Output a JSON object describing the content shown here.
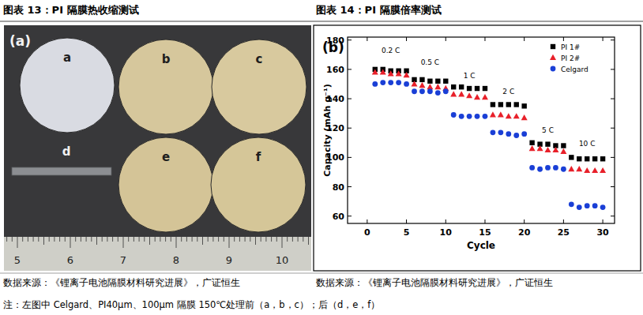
{
  "header": {
    "left_title": "图表 13：PI 隔膜热收缩测试",
    "right_title": "图表 14：PI 隔膜倍率测试"
  },
  "photo": {
    "panel_label": "(a)",
    "samples": [
      {
        "label": "a",
        "color": "#d9dbe2",
        "shape": "disc"
      },
      {
        "label": "b",
        "color": "#d6c79c",
        "shape": "disc"
      },
      {
        "label": "c",
        "color": "#d8c99e",
        "shape": "disc"
      },
      {
        "label": "d",
        "color": "#8c8e92",
        "shape": "strip"
      },
      {
        "label": "e",
        "color": "#d4c497",
        "shape": "disc"
      },
      {
        "label": "f",
        "color": "#d5c698",
        "shape": "disc"
      }
    ],
    "ruler_labels": [
      "5",
      "6",
      "7",
      "8",
      "9",
      "10"
    ]
  },
  "chart_data": {
    "type": "scatter",
    "panel_label": "(b)",
    "x_label": "Cycle",
    "y_label": "Capacity (mAh g⁻¹)",
    "x": [
      1,
      2,
      3,
      4,
      5,
      6,
      7,
      8,
      9,
      10,
      11,
      12,
      13,
      14,
      15,
      16,
      17,
      18,
      19,
      20,
      21,
      22,
      23,
      24,
      25,
      26,
      27,
      28,
      29,
      30
    ],
    "xlim": [
      -2.5,
      31.5
    ],
    "xticks": [
      0,
      5,
      10,
      15,
      20,
      25,
      30
    ],
    "ylim": [
      55,
      182
    ],
    "yticks": [
      60,
      80,
      100,
      120,
      140,
      160,
      180
    ],
    "grid": false,
    "legend": "upper right",
    "series": [
      {
        "name": "PI 1#",
        "color": "#000000",
        "marker": "square",
        "values": [
          160,
          160,
          159,
          159,
          159,
          153,
          153,
          152,
          152,
          152,
          148,
          148,
          147,
          147,
          147,
          136,
          136,
          136,
          136,
          135,
          110,
          109,
          109,
          108,
          108,
          100,
          99,
          99,
          99,
          99
        ]
      },
      {
        "name": "PI 2#",
        "color": "#e8202a",
        "marker": "triangle",
        "values": [
          158,
          158,
          157,
          157,
          156,
          150,
          149,
          148,
          148,
          147,
          143,
          143,
          142,
          141,
          141,
          129,
          129,
          128,
          128,
          127,
          106,
          106,
          105,
          105,
          104,
          92,
          92,
          91,
          91,
          91
        ]
      },
      {
        "name": "Celgard",
        "color": "#1a3fd6",
        "marker": "circle",
        "values": [
          150,
          151,
          151,
          151,
          150,
          145,
          145,
          145,
          144,
          145,
          129,
          128,
          128,
          128,
          128,
          117,
          117,
          116,
          115,
          116,
          93,
          92,
          93,
          93,
          92,
          68,
          66,
          67,
          67,
          66
        ]
      }
    ],
    "annotations": [
      {
        "text": "0.2 C",
        "x": 3,
        "y": 171
      },
      {
        "text": "0.5 C",
        "x": 8,
        "y": 163
      },
      {
        "text": "1 C",
        "x": 13,
        "y": 154
      },
      {
        "text": "2 C",
        "x": 18,
        "y": 143
      },
      {
        "text": "5 C",
        "x": 23,
        "y": 117
      },
      {
        "text": "10 C",
        "x": 28,
        "y": 108
      }
    ]
  },
  "sources": {
    "left": "数据来源：《锂离子电池隔膜材料研究进展》，广证恒生",
    "right": "数据来源：《锂离子电池隔膜材料研究进展》，广证恒生"
  },
  "note": "注：左图中 Celgard、PI40μm、100μm 隔膜 150℃处理前（a，b，c）；后（d，e，f）"
}
